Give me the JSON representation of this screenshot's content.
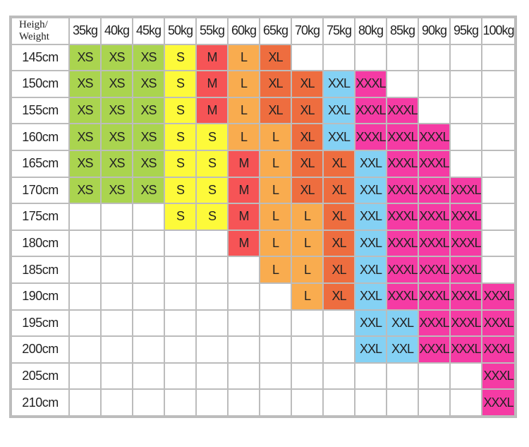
{
  "corner_label": [
    "Heigh/",
    "Weight"
  ],
  "weights": [
    "35kg",
    "40kg",
    "45kg",
    "50kg",
    "55kg",
    "60kg",
    "65kg",
    "70kg",
    "75kg",
    "80kg",
    "85kg",
    "90kg",
    "95kg",
    "100kg"
  ],
  "size_colors": {
    "XS": "#aad44f",
    "S": "#fdfa3a",
    "M": "#f65456",
    "L": "#f9ac4f",
    "XL": "#ee6d3f",
    "XXL": "#84d1f4",
    "XXXL": "#f53ba4"
  },
  "rows": [
    {
      "height": "145cm",
      "sizes": [
        "XS",
        "XS",
        "XS",
        "S",
        "M",
        "L",
        "XL",
        "",
        "",
        "",
        "",
        "",
        "",
        ""
      ]
    },
    {
      "height": "150cm",
      "sizes": [
        "XS",
        "XS",
        "XS",
        "S",
        "M",
        "L",
        "XL",
        "XL",
        "XXL",
        "XXXL",
        "",
        "",
        "",
        ""
      ]
    },
    {
      "height": "155cm",
      "sizes": [
        "XS",
        "XS",
        "XS",
        "S",
        "M",
        "L",
        "XL",
        "XL",
        "XXL",
        "XXXL",
        "XXXL",
        "",
        "",
        ""
      ]
    },
    {
      "height": "160cm",
      "sizes": [
        "XS",
        "XS",
        "XS",
        "S",
        "S",
        "L",
        "L",
        "XL",
        "XXL",
        "XXXL",
        "XXXL",
        "XXXL",
        "",
        ""
      ]
    },
    {
      "height": "165cm",
      "sizes": [
        "XS",
        "XS",
        "XS",
        "S",
        "S",
        "M",
        "L",
        "XL",
        "XL",
        "XXL",
        "XXXL",
        "XXXL",
        "",
        ""
      ]
    },
    {
      "height": "170cm",
      "sizes": [
        "XS",
        "XS",
        "XS",
        "S",
        "S",
        "M",
        "L",
        "XL",
        "XL",
        "XXL",
        "XXXL",
        "XXXL",
        "XXXL",
        ""
      ]
    },
    {
      "height": "175cm",
      "sizes": [
        "",
        "",
        "",
        "S",
        "S",
        "M",
        "L",
        "L",
        "XL",
        "XXL",
        "XXXL",
        "XXXL",
        "XXXL",
        ""
      ]
    },
    {
      "height": "180cm",
      "sizes": [
        "",
        "",
        "",
        "",
        "",
        "M",
        "L",
        "L",
        "XL",
        "XXL",
        "XXXL",
        "XXXL",
        "XXXL",
        ""
      ]
    },
    {
      "height": "185cm",
      "sizes": [
        "",
        "",
        "",
        "",
        "",
        "",
        "L",
        "L",
        "XL",
        "XXL",
        "XXXL",
        "XXXL",
        "XXXL",
        ""
      ]
    },
    {
      "height": "190cm",
      "sizes": [
        "",
        "",
        "",
        "",
        "",
        "",
        "",
        "L",
        "XL",
        "XXL",
        "XXXL",
        "XXXL",
        "XXXL",
        "XXXL"
      ]
    },
    {
      "height": "195cm",
      "sizes": [
        "",
        "",
        "",
        "",
        "",
        "",
        "",
        "",
        "",
        "XXL",
        "XXL",
        "XXXL",
        "XXXL",
        "XXXL"
      ]
    },
    {
      "height": "200cm",
      "sizes": [
        "",
        "",
        "",
        "",
        "",
        "",
        "",
        "",
        "",
        "XXL",
        "XXL",
        "XXXL",
        "XXXL",
        "XXXL"
      ]
    },
    {
      "height": "205cm",
      "sizes": [
        "",
        "",
        "",
        "",
        "",
        "",
        "",
        "",
        "",
        "",
        "",
        "",
        "",
        "XXXL"
      ]
    },
    {
      "height": "210cm",
      "sizes": [
        "",
        "",
        "",
        "",
        "",
        "",
        "",
        "",
        "",
        "",
        "",
        "",
        "",
        "XXXL"
      ]
    }
  ]
}
